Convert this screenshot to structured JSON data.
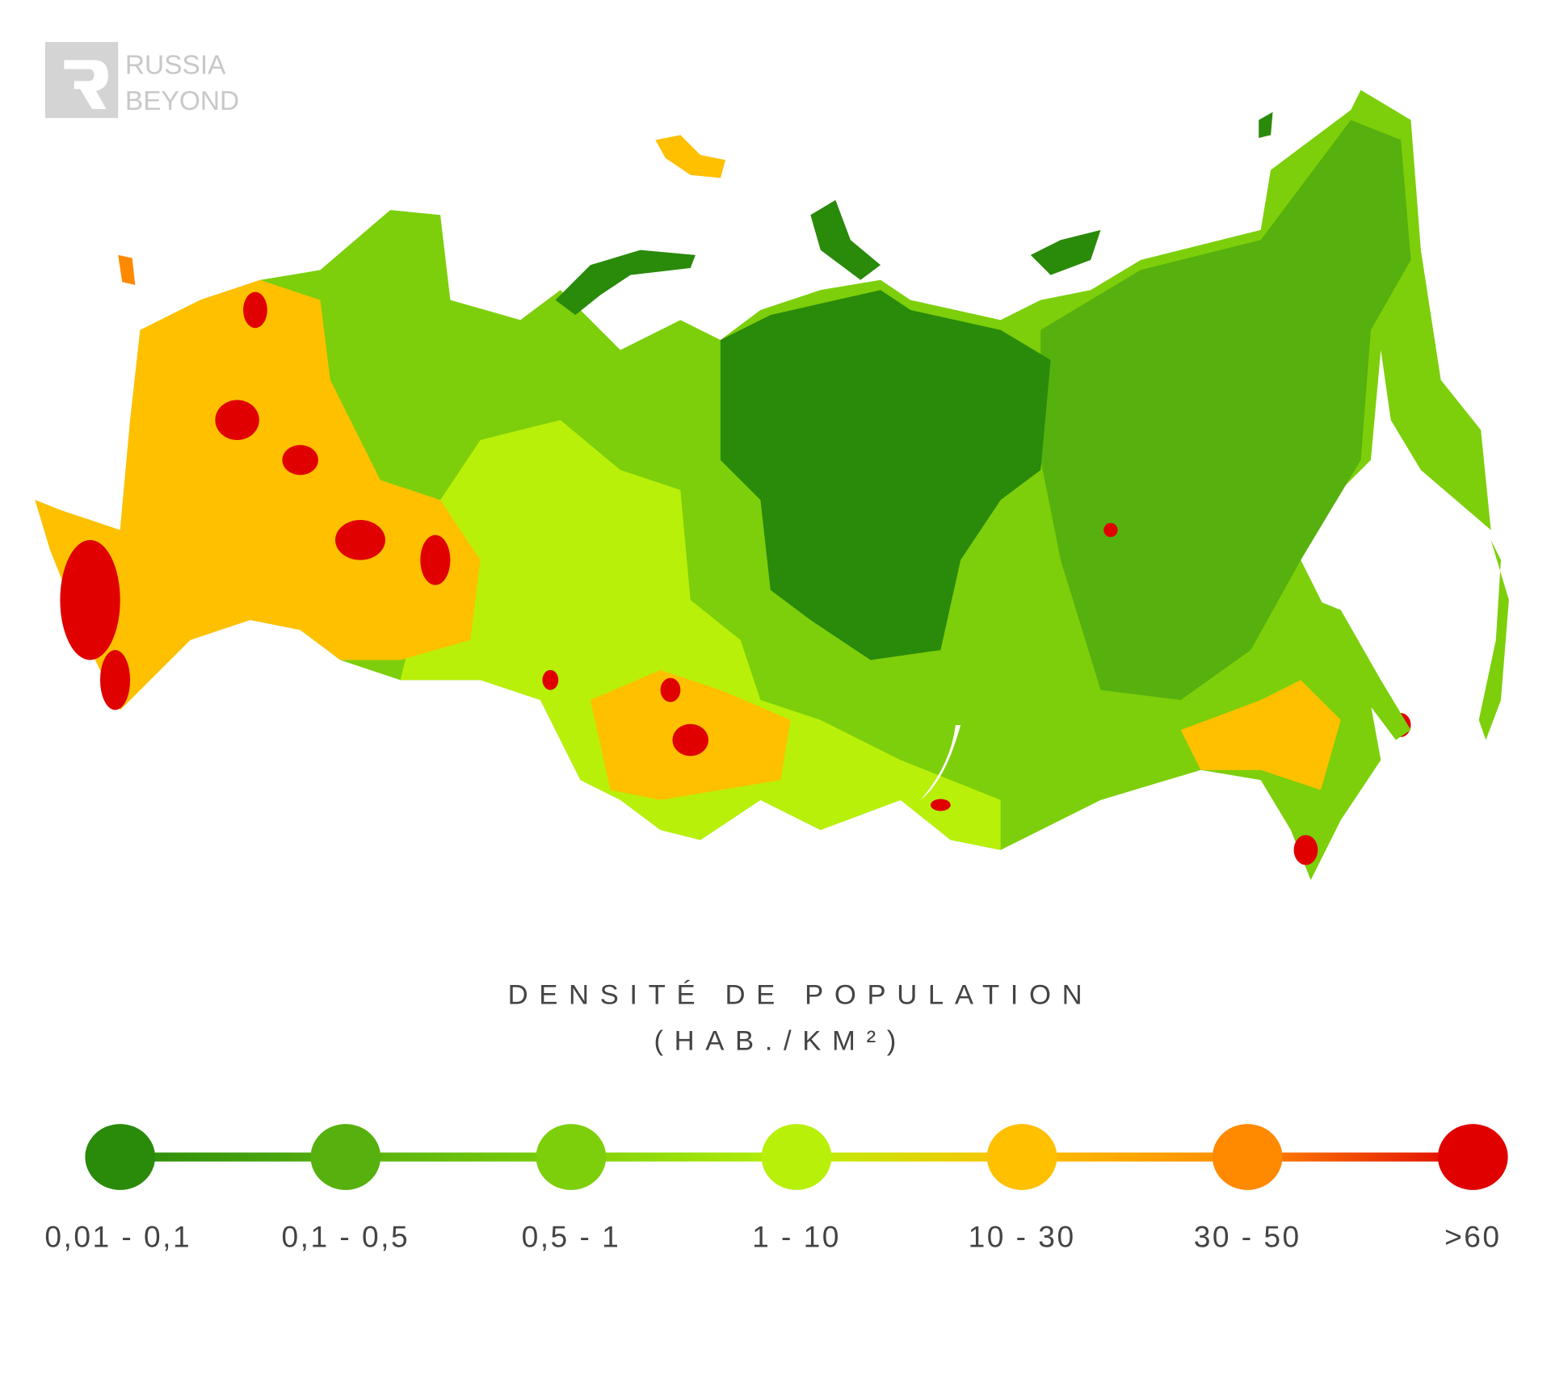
{
  "logo": {
    "line1": "RUSSIA",
    "line2": "BEYOND"
  },
  "legend": {
    "title": "DENSITÉ DE POPULATION",
    "unit": "(HAB./KM²)",
    "items": [
      {
        "label": "0,01 - 0,1",
        "color": "#2a8a0a"
      },
      {
        "label": "0,1 - 0,5",
        "color": "#56b00d"
      },
      {
        "label": "0,5 - 1",
        "color": "#7ccf0a"
      },
      {
        "label": "1 - 10",
        "color": "#b8f00a"
      },
      {
        "label": "10 - 30",
        "color": "#ffc000"
      },
      {
        "label": "30 - 50",
        "color": "#ff8a00"
      },
      {
        "label": ">60",
        "color": "#e00000"
      }
    ]
  }
}
